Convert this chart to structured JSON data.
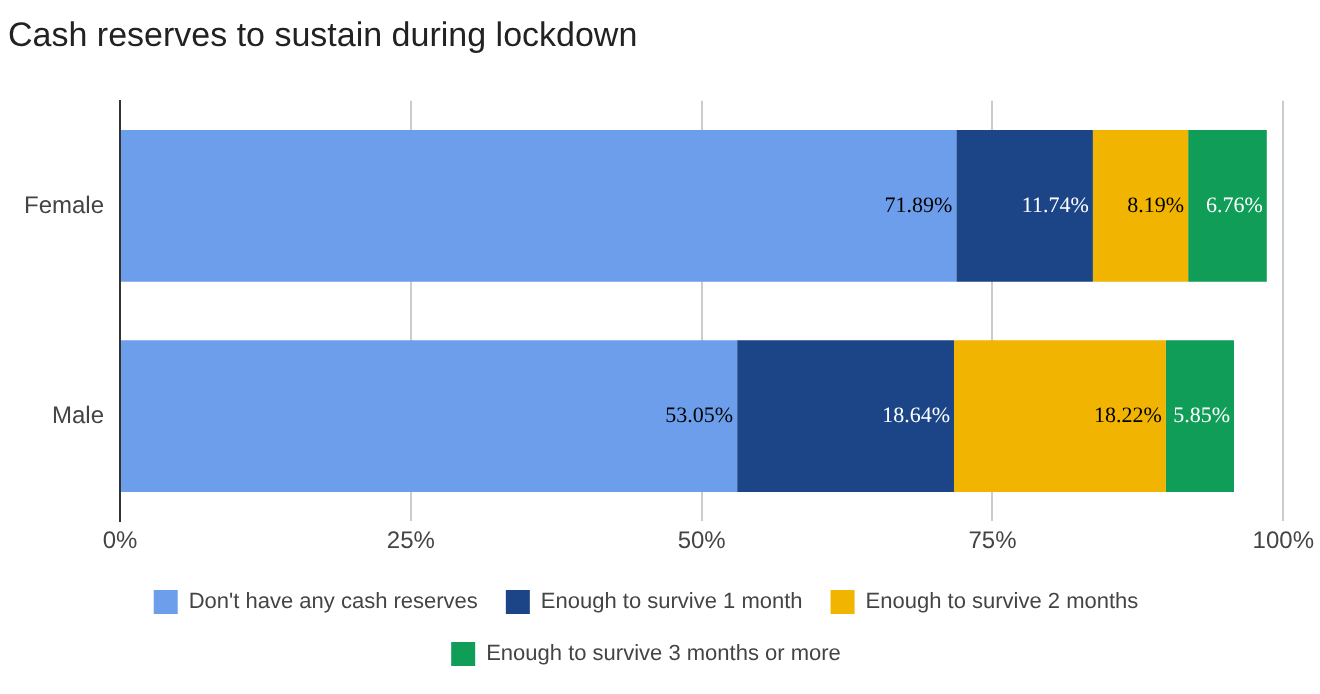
{
  "chart_data": {
    "type": "bar",
    "orientation": "horizontal",
    "stacked": true,
    "title": "Cash reserves to sustain during lockdown",
    "categories": [
      "Female",
      "Male"
    ],
    "series": [
      {
        "name": "Don't have any cash reserves",
        "color": "#6d9eeb",
        "values": [
          71.89,
          53.05
        ],
        "value_labels": [
          "71.89%",
          "53.05%"
        ]
      },
      {
        "name": "Enough to survive 1 month",
        "color": "#1c4587",
        "values": [
          11.74,
          18.64
        ],
        "value_labels": [
          "11.74%",
          "18.64%"
        ]
      },
      {
        "name": "Enough to survive 2 months",
        "color": "#f1b400",
        "values": [
          8.19,
          18.22
        ],
        "value_labels": [
          "8.19%",
          "18.22%"
        ]
      },
      {
        "name": "Enough to survive 3 months or more",
        "color": "#0f9d58",
        "values": [
          6.76,
          5.85
        ],
        "value_labels": [
          "6.76%",
          "5.85%"
        ]
      }
    ],
    "xlim": [
      0,
      100
    ],
    "xticks": [
      {
        "value": 0,
        "label": "0%"
      },
      {
        "value": 25,
        "label": "25%"
      },
      {
        "value": 50,
        "label": "50%"
      },
      {
        "value": 75,
        "label": "75%"
      },
      {
        "value": 100,
        "label": "100%"
      }
    ],
    "grid": "x",
    "legend": "bottom"
  }
}
